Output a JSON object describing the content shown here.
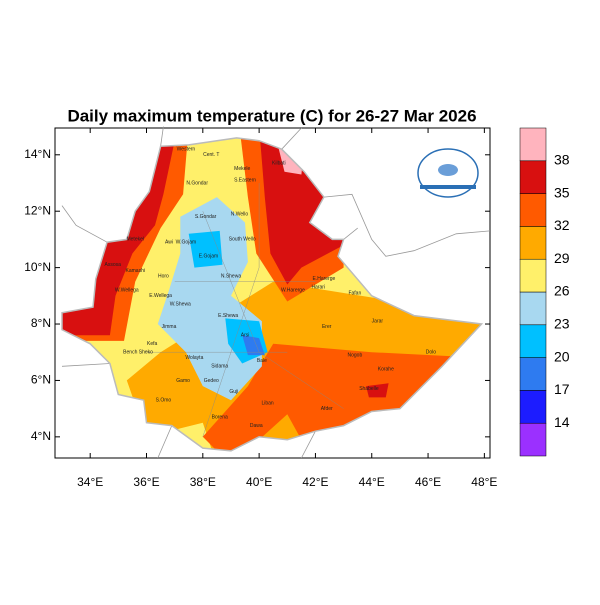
{
  "title": "Daily maximum temperature (C) for 26-27 Mar 2026",
  "map": {
    "xlim": [
      32.75,
      48.2
    ],
    "ylim": [
      3.25,
      14.95
    ],
    "xticks": [
      {
        "value": 34,
        "label": "34°E"
      },
      {
        "value": 36,
        "label": "36°E"
      },
      {
        "value": 38,
        "label": "38°E"
      },
      {
        "value": 40,
        "label": "40°E"
      },
      {
        "value": 42,
        "label": "42°E"
      },
      {
        "value": 44,
        "label": "44°E"
      },
      {
        "value": 46,
        "label": "46°E"
      },
      {
        "value": 48,
        "label": "48°E"
      }
    ],
    "yticks": [
      {
        "value": 4,
        "label": "4°N"
      },
      {
        "value": 6,
        "label": "6°N"
      },
      {
        "value": 8,
        "label": "8°N"
      },
      {
        "value": 10,
        "label": "10°N"
      },
      {
        "value": 12,
        "label": "12°N"
      },
      {
        "value": 14,
        "label": "14°N"
      }
    ],
    "zones": [
      "Western",
      "Cent. T",
      "Mekele",
      "S.Eastern",
      "N.Gondar",
      "Kilbati",
      "S.Gondar",
      "N.Wello",
      "Metekel",
      "Awi",
      "W.Gojam",
      "South Wello",
      "E.Gojam",
      "Assosa",
      "Kamashi",
      "Horo",
      "W.Wellega",
      "E.Wellega",
      "W.Shewa",
      "N.Shewa",
      "Jimma",
      "Bench Sheko",
      "Kefa",
      "Sidama",
      "Gedeo",
      "Borena",
      "Liban",
      "Afder",
      "Dawa",
      "Shabelle",
      "Korahe",
      "Nogob",
      "Dolo",
      "Jarar",
      "Erer",
      "Fafan",
      "Harari",
      "E.Harerge",
      "W.Harerge",
      "Bale",
      "Arsi",
      "E.Shewa",
      "Guji",
      "S.Omo",
      "Gamo",
      "Wolayta"
    ]
  },
  "colorbar": {
    "levels": [
      14,
      17,
      20,
      23,
      26,
      29,
      32,
      35,
      38
    ],
    "colors": [
      "#9b30ff",
      "#1c1cff",
      "#2e7bf0",
      "#00c0ff",
      "#a8d8f0",
      "#fff06a",
      "#ffaa00",
      "#ff5a00",
      "#d81010",
      "#ffb4be"
    ]
  }
}
